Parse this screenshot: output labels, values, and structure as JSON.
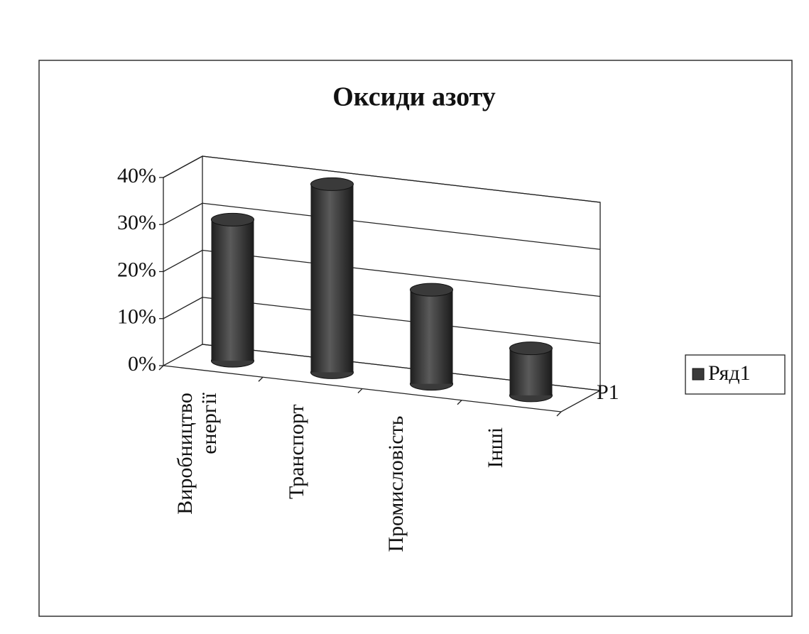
{
  "chart_data": {
    "type": "bar3d",
    "title": "Оксиди азоту",
    "categories": [
      "Виробництво енергії",
      "Транспорт",
      "Промисловість",
      "Інші"
    ],
    "series": [
      {
        "name": "Ряд1",
        "color": "#3a3a3a",
        "values": [
          30,
          40,
          20,
          10
        ]
      }
    ],
    "series_axis_labels": [
      "Р1"
    ],
    "ylim": [
      0,
      40
    ],
    "yticks": [
      {
        "value": 0,
        "label": "0%"
      },
      {
        "value": 10,
        "label": "10%"
      },
      {
        "value": 20,
        "label": "20%"
      },
      {
        "value": 30,
        "label": "30%"
      },
      {
        "value": 40,
        "label": "40%"
      }
    ],
    "grid": true,
    "legend": "right"
  }
}
